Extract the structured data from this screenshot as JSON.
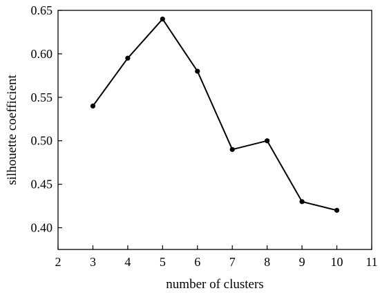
{
  "chart_data": {
    "type": "line",
    "title": "",
    "xlabel": "number of clusters",
    "ylabel": "silhouette coefficient",
    "xlim": [
      2,
      11
    ],
    "ylim": [
      0.375,
      0.65
    ],
    "x_ticks": [
      "2",
      "3",
      "4",
      "5",
      "6",
      "7",
      "8",
      "9",
      "10",
      "11"
    ],
    "y_ticks": [
      "0.40",
      "0.45",
      "0.50",
      "0.55",
      "0.60",
      "0.65"
    ],
    "grid": false,
    "legend": "none",
    "series": [
      {
        "color": "#000000",
        "marker": "circle",
        "x": [
          3,
          4,
          5,
          6,
          7,
          8,
          9,
          10
        ],
        "y": [
          0.54,
          0.595,
          0.64,
          0.58,
          0.49,
          0.5,
          0.43,
          0.42
        ]
      }
    ]
  }
}
